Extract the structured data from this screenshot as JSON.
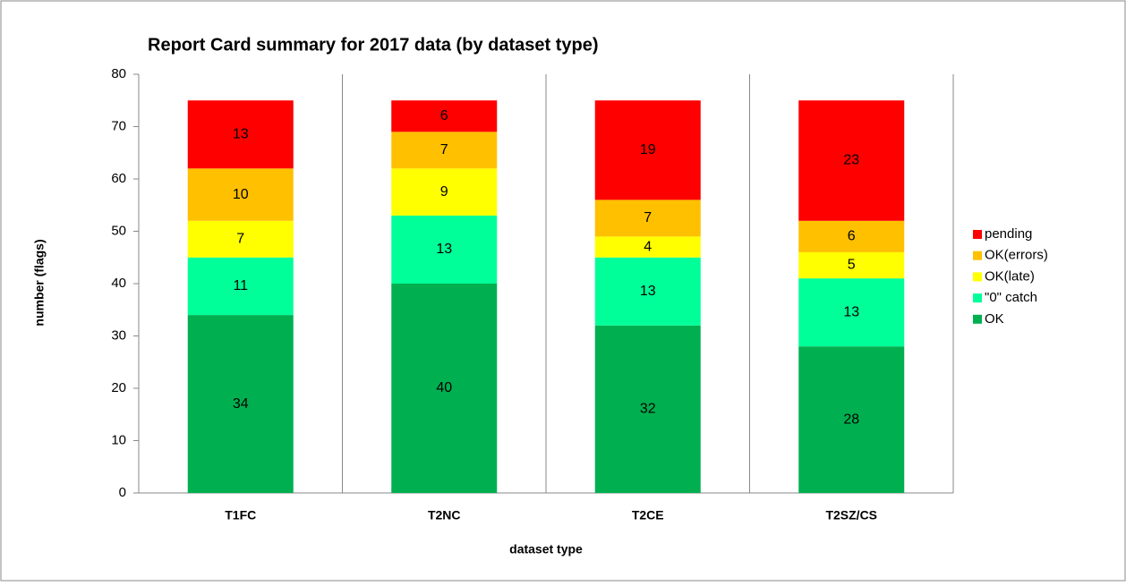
{
  "chart_data": {
    "type": "stacked_bar",
    "title": "Report Card summary for 2017 data (by dataset type)",
    "x_label": "dataset type",
    "y_label": "number (flags)",
    "categories": [
      "T1FC",
      "T2NC",
      "T2CE",
      "T2SZ/CS"
    ],
    "series": [
      {
        "name": "OK",
        "color": "#00b050",
        "values": [
          34,
          40,
          32,
          28
        ]
      },
      {
        "name": "\"0\" catch",
        "color": "#00ff99",
        "values": [
          11,
          13,
          13,
          13
        ]
      },
      {
        "name": "OK(late)",
        "color": "#ffff00",
        "values": [
          7,
          9,
          4,
          5
        ]
      },
      {
        "name": "OK(errors)",
        "color": "#ffc000",
        "values": [
          10,
          7,
          7,
          6
        ]
      },
      {
        "name": "pending",
        "color": "#ff0000",
        "values": [
          13,
          6,
          19,
          23
        ]
      }
    ],
    "ylim": [
      0,
      80
    ],
    "yticks": [
      0,
      10,
      20,
      30,
      40,
      50,
      60,
      70,
      80
    ],
    "legend": "right"
  }
}
